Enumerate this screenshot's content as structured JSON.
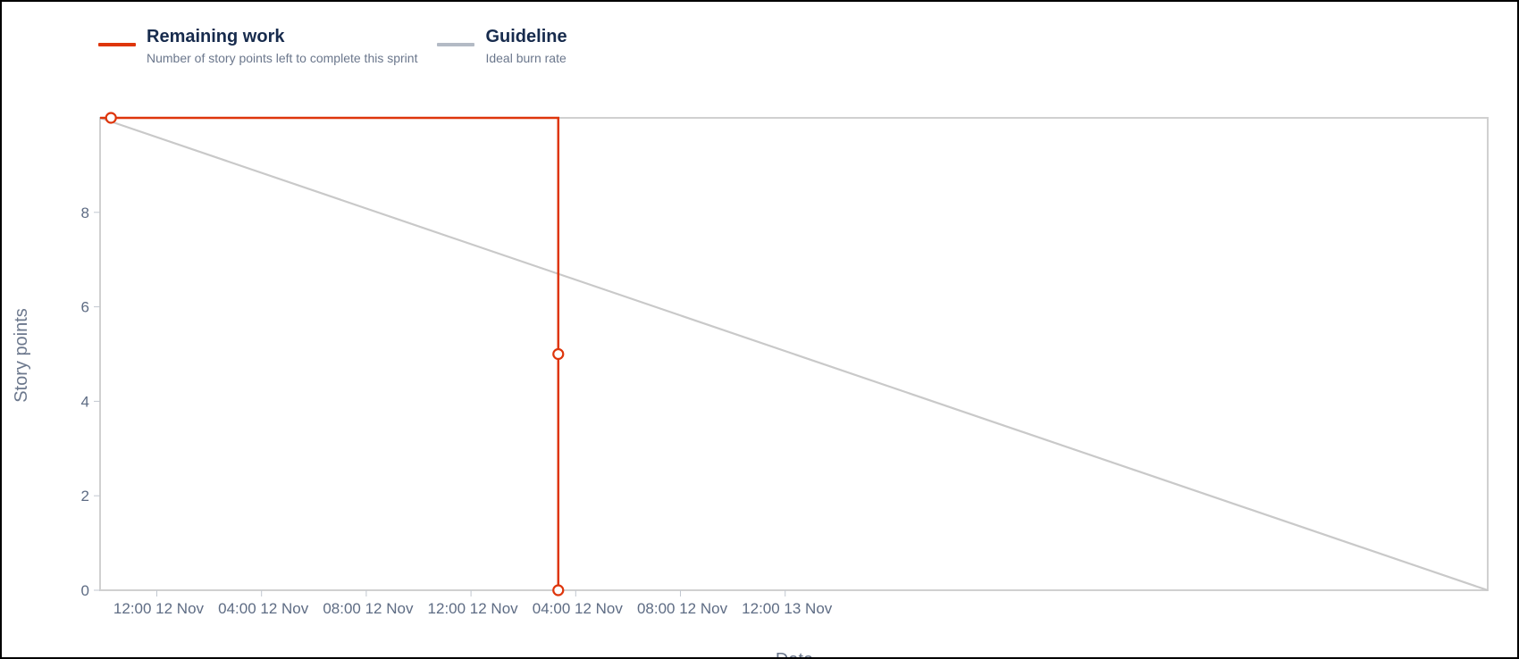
{
  "legend": {
    "remaining": {
      "title": "Remaining work",
      "description": "Number of story points left to complete this sprint",
      "color": "#de350b"
    },
    "guideline": {
      "title": "Guideline",
      "description": "Ideal burn rate",
      "color": "#b3bac5"
    }
  },
  "chart_data": {
    "type": "line",
    "xlabel": "Date",
    "ylabel": "Story points",
    "ylim": [
      0,
      10
    ],
    "y_ticks": [
      0,
      2,
      4,
      6,
      8
    ],
    "xlim": [
      "2024-11-11T09:50",
      "2024-11-13T14:50"
    ],
    "x_ticks": [
      {
        "t": "2024-11-11T12:00",
        "label": "12:00 12 Nov"
      },
      {
        "t": "2024-11-11T16:00",
        "label": "04:00 12 Nov"
      },
      {
        "t": "2024-11-11T20:00",
        "label": "08:00 12 Nov"
      },
      {
        "t": "2024-11-12T00:00",
        "label": "12:00 12 Nov"
      },
      {
        "t": "2024-11-12T04:00",
        "label": "04:00 12 Nov"
      },
      {
        "t": "2024-11-12T08:00",
        "label": "08:00 12 Nov"
      },
      {
        "t": "2024-11-12T12:00",
        "label": "12:00 13 Nov"
      }
    ],
    "series": [
      {
        "name": "Remaining work",
        "color": "#de350b",
        "step": true,
        "points": [
          {
            "x": "2024-11-11T09:50",
            "y": 10,
            "marker": false
          },
          {
            "x": "2024-11-11T10:15",
            "y": 10,
            "marker": true
          },
          {
            "x": "2024-11-12T03:20",
            "y": 10,
            "marker": false
          },
          {
            "x": "2024-11-12T03:20",
            "y": 5,
            "marker": true
          },
          {
            "x": "2024-11-12T03:20",
            "y": 0,
            "marker": true
          }
        ]
      },
      {
        "name": "Guideline",
        "color": "#c9c9c9",
        "step": false,
        "points": [
          {
            "x": "2024-11-11T09:50",
            "y": 10,
            "marker": false
          },
          {
            "x": "2024-11-13T14:50",
            "y": 0,
            "marker": false
          }
        ]
      }
    ],
    "grid": false,
    "legend_position": "top-left"
  }
}
